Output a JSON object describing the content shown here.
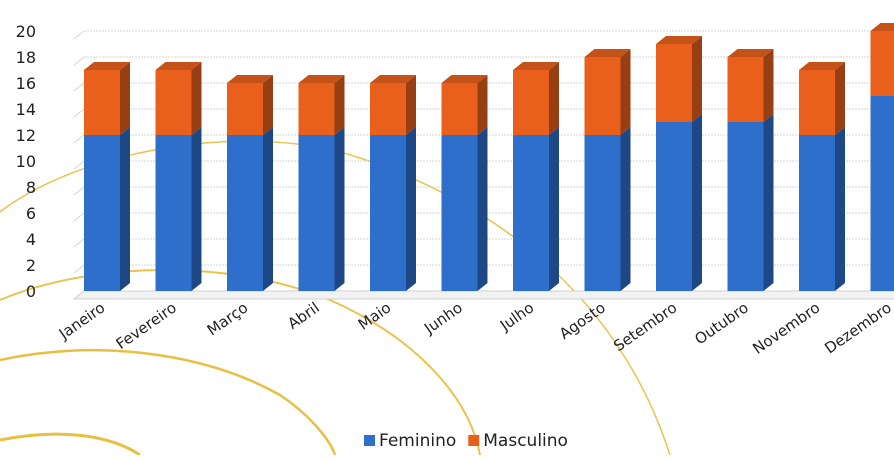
{
  "chart_data": {
    "type": "bar",
    "stacked": true,
    "style": "3d-column",
    "categories": [
      "Janeiro",
      "Fevereiro",
      "Março",
      "Abril",
      "Maio",
      "Junho",
      "Julho",
      "Agosto",
      "Setembro",
      "Outubro",
      "Novembro",
      "Dezembro"
    ],
    "series": [
      {
        "name": "Feminino",
        "color": "#2E6FCC",
        "values": [
          12,
          12,
          12,
          12,
          12,
          12,
          12,
          12,
          13,
          13,
          12,
          15
        ]
      },
      {
        "name": "Masculino",
        "color": "#E8601C",
        "values": [
          5,
          5,
          4,
          4,
          4,
          4,
          5,
          6,
          6,
          5,
          5,
          5
        ]
      }
    ],
    "y_ticks": [
      "0",
      "2",
      "4",
      "6",
      "8",
      "10",
      "12",
      "14",
      "16",
      "18",
      "20"
    ],
    "ylim": [
      0,
      20
    ],
    "grid": true,
    "legend_position": "bottom-center"
  }
}
